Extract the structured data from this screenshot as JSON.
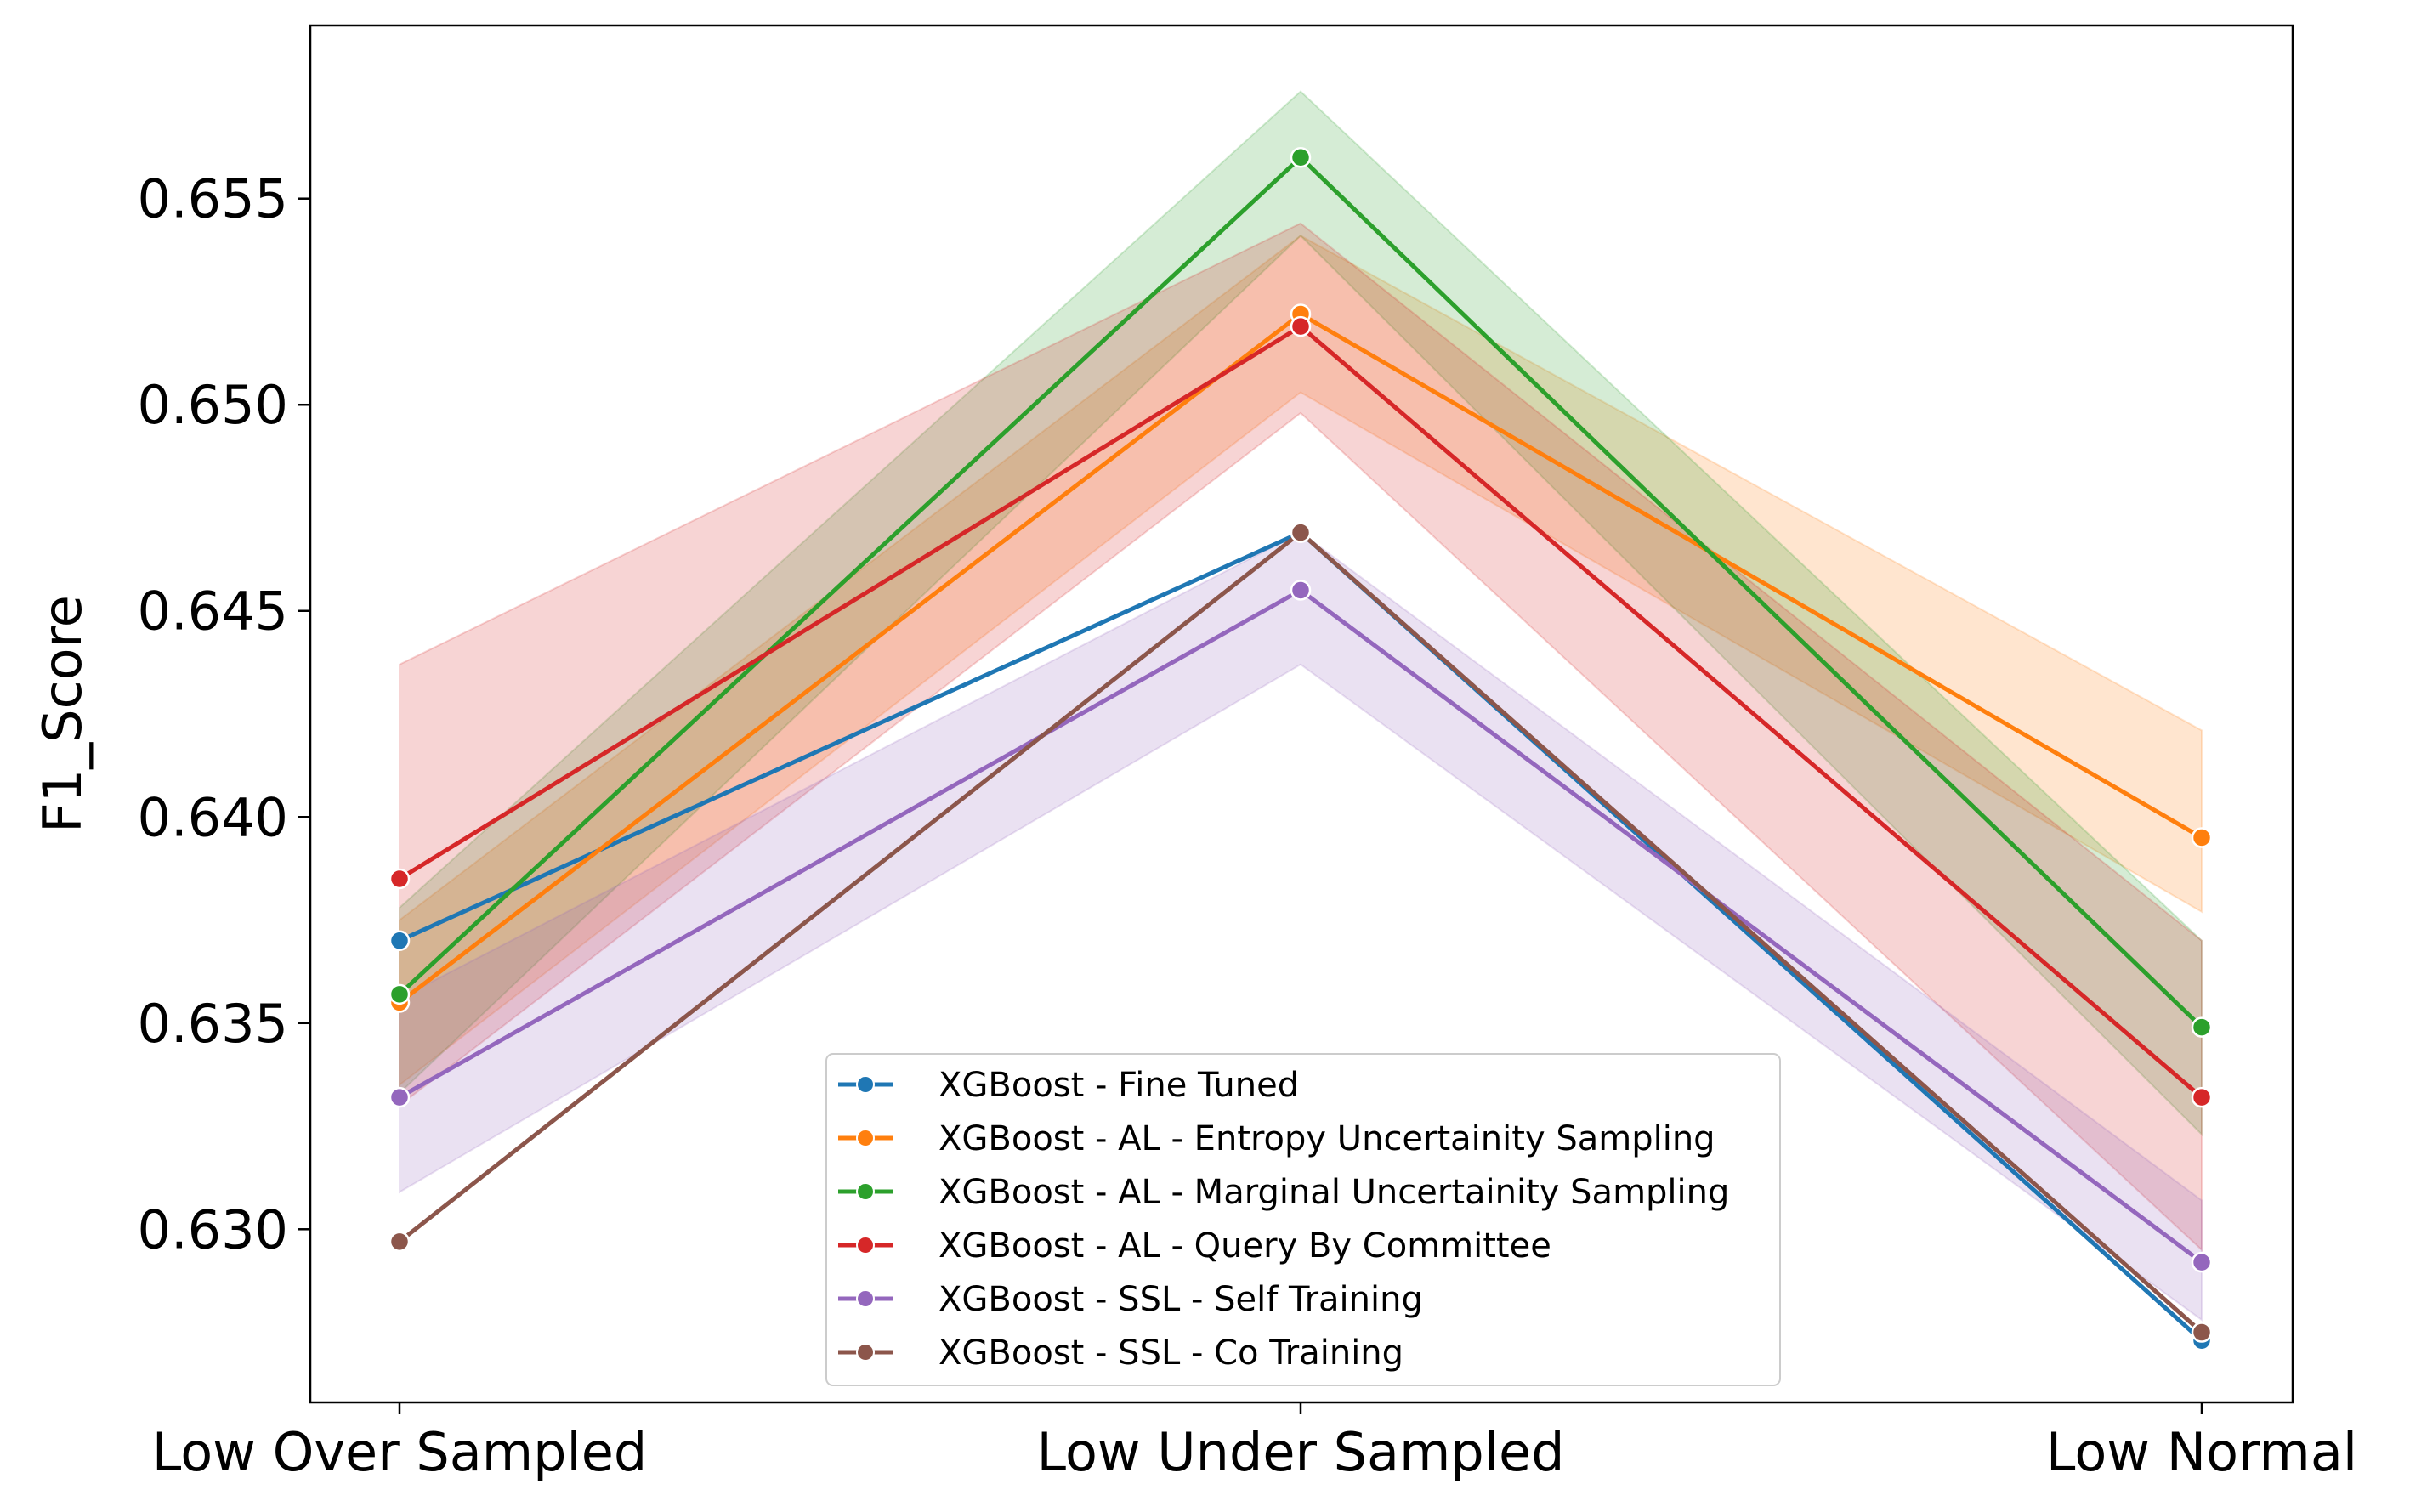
{
  "chart_data": {
    "type": "line",
    "title": "",
    "xlabel": "",
    "ylabel": "F1_Score",
    "categories": [
      "Low Over Sampled",
      "Low Under Sampled",
      "Low Normal"
    ],
    "ylim": [
      0.6258,
      0.6592
    ],
    "yticks": [
      0.63,
      0.635,
      0.64,
      0.645,
      0.65,
      0.655
    ],
    "ytick_labels": [
      "0.630",
      "0.635",
      "0.640",
      "0.645",
      "0.650",
      "0.655"
    ],
    "grid": false,
    "legend_position": "bottom-center",
    "series": [
      {
        "name": "XGBoost - Fine Tuned",
        "color": "#1f77b4",
        "values": [
          0.637,
          0.6469,
          0.6273
        ],
        "lower": [
          0.637,
          0.6469,
          0.6273
        ],
        "upper": [
          0.637,
          0.6469,
          0.6273
        ]
      },
      {
        "name": "XGBoost - AL - Entropy Uncertainity Sampling",
        "color": "#ff7f0e",
        "values": [
          0.6355,
          0.6522,
          0.6395
        ],
        "lower": [
          0.6335,
          0.6503,
          0.6377
        ],
        "upper": [
          0.6375,
          0.6541,
          0.6421
        ]
      },
      {
        "name": "XGBoost - AL - Marginal Uncertainity Sampling",
        "color": "#2ca02c",
        "values": [
          0.6357,
          0.656,
          0.6349
        ],
        "lower": [
          0.6333,
          0.6541,
          0.6323
        ],
        "upper": [
          0.6378,
          0.6576,
          0.637
        ]
      },
      {
        "name": "XGBoost - AL - Query By Committee",
        "color": "#d62728",
        "values": [
          0.6385,
          0.6519,
          0.6332
        ],
        "lower": [
          0.633,
          0.6498,
          0.6295
        ],
        "upper": [
          0.6437,
          0.6544,
          0.637
        ]
      },
      {
        "name": "XGBoost - SSL - Self Training",
        "color": "#9467bd",
        "values": [
          0.6332,
          0.6455,
          0.6292
        ],
        "lower": [
          0.6309,
          0.6437,
          0.6278
        ],
        "upper": [
          0.6356,
          0.6469,
          0.6307
        ]
      },
      {
        "name": "XGBoost - SSL - Co Training",
        "color": "#8c564b",
        "values": [
          0.6297,
          0.6469,
          0.6275
        ],
        "lower": [
          0.6297,
          0.6469,
          0.6275
        ],
        "upper": [
          0.6297,
          0.6469,
          0.6275
        ]
      }
    ]
  }
}
